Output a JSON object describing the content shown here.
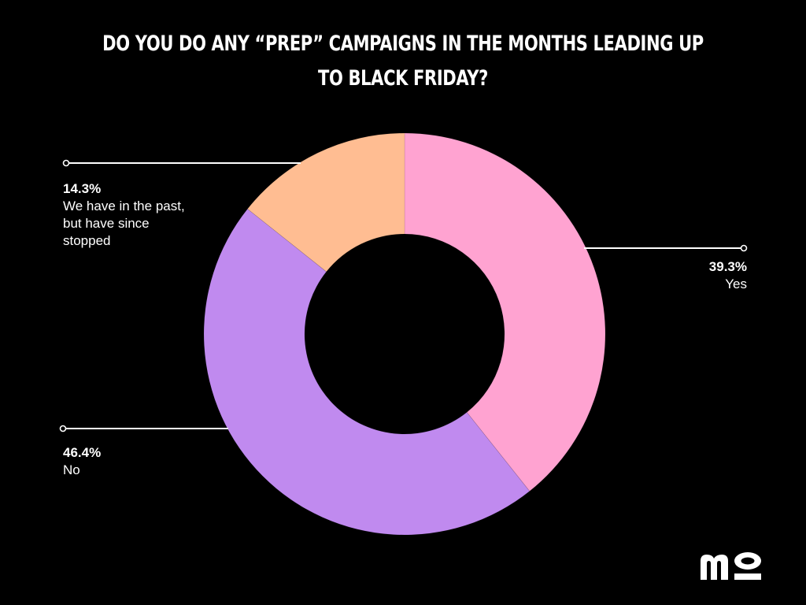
{
  "title_lines": [
    "DO YOU DO ANY “PREP” CAMPAIGNS IN THE MONTHS LEADING UP",
    "TO BLACK FRIDAY?"
  ],
  "chart_data": {
    "type": "pie",
    "title": "DO YOU DO ANY “PREP” CAMPAIGNS IN THE MONTHS LEADING UP TO BLACK FRIDAY?",
    "donut": true,
    "categories": [
      "Yes",
      "No",
      "We have in the past, but have since stopped"
    ],
    "values": [
      39.3,
      46.4,
      14.3
    ],
    "value_labels": [
      "39.3%",
      "46.4%",
      "14.3%"
    ],
    "colors": [
      "#FFA3D1",
      "#C08AEF",
      "#FFBD92"
    ],
    "legend": "none",
    "start": "12 o'clock, clockwise"
  },
  "labels": {
    "yes": {
      "pct": "39.3%",
      "name": "Yes"
    },
    "no": {
      "pct": "46.4%",
      "name": "No"
    },
    "past": {
      "pct": "14.3%",
      "name": "We have in the past, but have since stopped"
    }
  },
  "logo": {
    "text": "mo",
    "icon": "mo-logo-icon"
  }
}
